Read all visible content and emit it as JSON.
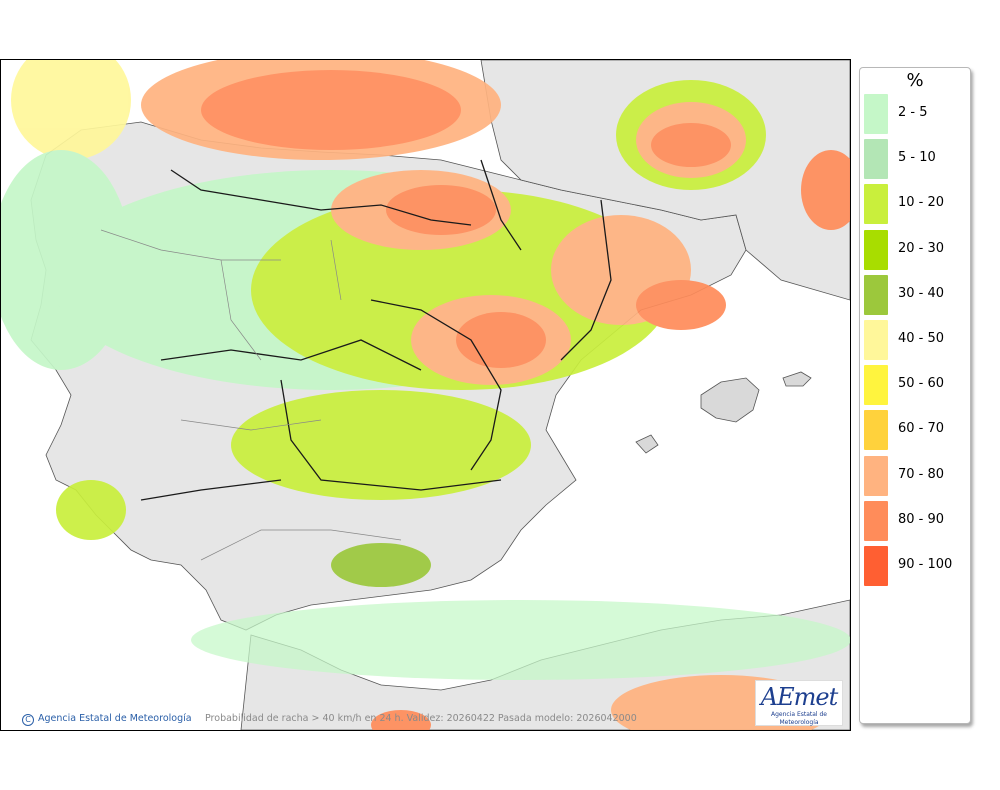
{
  "legend": {
    "unit": "%",
    "items": [
      {
        "label": "2 - 5",
        "color": "#c5f7c8"
      },
      {
        "label": "5 - 10",
        "color": "#b3e6b5"
      },
      {
        "label": "10 - 20",
        "color": "#c9ef3c"
      },
      {
        "label": "20 - 30",
        "color": "#a8dd00"
      },
      {
        "label": "30 - 40",
        "color": "#9cc83c"
      },
      {
        "label": "40 - 50",
        "color": "#fff79a"
      },
      {
        "label": "50 - 60",
        "color": "#fff43e"
      },
      {
        "label": "60 - 70",
        "color": "#ffd23c"
      },
      {
        "label": "70 - 80",
        "color": "#ffb380"
      },
      {
        "label": "80 - 90",
        "color": "#ff8c5a"
      },
      {
        "label": "90 - 100",
        "color": "#ff5f32"
      }
    ]
  },
  "footer": {
    "copyright": "Agencia Estatal de Meteorología",
    "caption": "Probabilidad de racha > 40 km/h en 24 h. Validez: 20260422 Pasada modelo: 2026042000"
  },
  "logo": {
    "text": "AEmet",
    "subtitle": "Agencia Estatal de Meteorología"
  },
  "colors": {
    "land": "#e8e8e8",
    "sea": "#ffffff",
    "border": "#1a1a1a",
    "region_border": "#777777"
  }
}
